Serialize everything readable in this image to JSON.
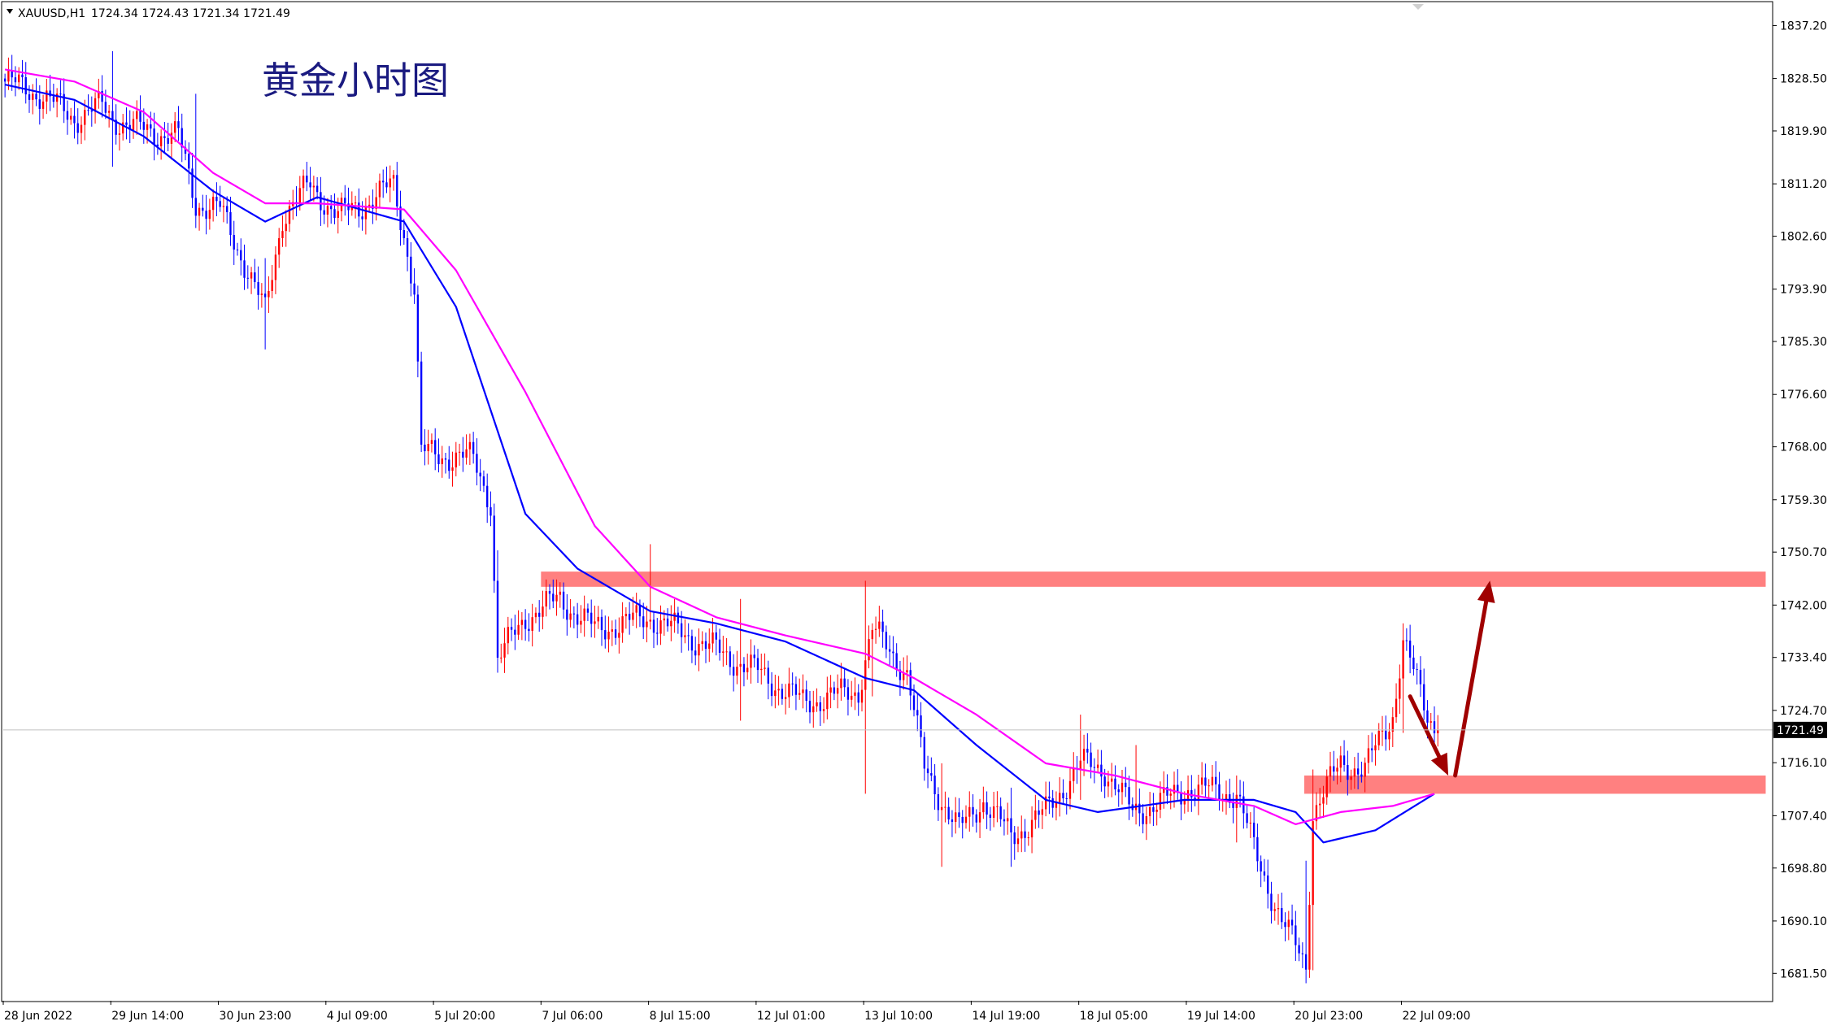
{
  "header": {
    "symbol": "XAUUSD,H1",
    "ohlc": "1724.34 1724.43 1721.34 1721.49"
  },
  "annotation_title": "黄金小时图",
  "current_price_label": "1721.49",
  "colors": {
    "background": "#ffffff",
    "axis": "#000000",
    "bull_candle": "#ff0000",
    "bear_candle": "#0000ff",
    "ma_fast": "#0000ff",
    "ma_slow": "#ff00ff",
    "zone": "#ff8080",
    "arrow": "#a00000",
    "price_label_bg": "#000000",
    "price_label_text": "#ffffff"
  },
  "chart_data": {
    "type": "candlestick",
    "symbol": "XAUUSD",
    "timeframe": "H1",
    "ylim": [
      1677.0,
      1841.0
    ],
    "y_ticks": [
      "1837.20",
      "1828.50",
      "1819.90",
      "1811.20",
      "1802.60",
      "1793.90",
      "1785.30",
      "1776.60",
      "1768.00",
      "1759.30",
      "1750.70",
      "1742.00",
      "1733.40",
      "1724.70",
      "1716.10",
      "1707.40",
      "1698.80",
      "1690.10",
      "1681.50"
    ],
    "x_ticks": [
      "28 Jun 2022",
      "29 Jun 14:00",
      "30 Jun 23:00",
      "4 Jul 09:00",
      "5 Jul 20:00",
      "7 Jul 06:00",
      "8 Jul 15:00",
      "12 Jul 01:00",
      "13 Jul 10:00",
      "14 Jul 19:00",
      "18 Jul 05:00",
      "19 Jul 14:00",
      "20 Jul 23:00",
      "22 Jul 09:00"
    ],
    "x_tick_bar_index": [
      0,
      31,
      62,
      93,
      124,
      155,
      186,
      217,
      248,
      279,
      310,
      341,
      372,
      403
    ],
    "total_bars": 510,
    "close_path_anchors": [
      [
        0,
        1828
      ],
      [
        10,
        1826
      ],
      [
        20,
        1822
      ],
      [
        28,
        1824
      ],
      [
        31,
        1822
      ],
      [
        40,
        1820
      ],
      [
        50,
        1819
      ],
      [
        55,
        1808
      ],
      [
        62,
        1807
      ],
      [
        70,
        1797
      ],
      [
        75,
        1790
      ],
      [
        80,
        1806
      ],
      [
        88,
        1811
      ],
      [
        96,
        1806
      ],
      [
        104,
        1808
      ],
      [
        112,
        1811
      ],
      [
        115,
        1803
      ],
      [
        118,
        1794
      ],
      [
        120,
        1767
      ],
      [
        135,
        1766
      ],
      [
        140,
        1759
      ],
      [
        142,
        1733
      ],
      [
        150,
        1740
      ],
      [
        160,
        1743
      ],
      [
        170,
        1738
      ],
      [
        186,
        1740
      ],
      [
        200,
        1736
      ],
      [
        217,
        1731
      ],
      [
        230,
        1726
      ],
      [
        246,
        1728
      ],
      [
        250,
        1738
      ],
      [
        260,
        1731
      ],
      [
        265,
        1715
      ],
      [
        275,
        1705
      ],
      [
        282,
        1710
      ],
      [
        290,
        1704
      ],
      [
        300,
        1708
      ],
      [
        310,
        1716
      ],
      [
        317,
        1715
      ],
      [
        325,
        1708
      ],
      [
        335,
        1710
      ],
      [
        341,
        1712
      ],
      [
        355,
        1711
      ],
      [
        360,
        1702
      ],
      [
        368,
        1690
      ],
      [
        375,
        1683
      ],
      [
        377,
        1708
      ],
      [
        385,
        1716
      ],
      [
        392,
        1715
      ],
      [
        400,
        1724
      ],
      [
        403,
        1736
      ],
      [
        410,
        1724
      ],
      [
        413,
        1721.49
      ]
    ],
    "wicks": [
      [
        31,
        1833,
        1814
      ],
      [
        55,
        1826,
        1805
      ],
      [
        75,
        1799,
        1784
      ],
      [
        142,
        1751,
        1733
      ],
      [
        186,
        1752,
        1738
      ],
      [
        212,
        1743,
        1723
      ],
      [
        248,
        1746,
        1711
      ],
      [
        250,
        1739,
        1727
      ],
      [
        270,
        1716,
        1699
      ],
      [
        290,
        1712,
        1699
      ],
      [
        310,
        1724,
        1710
      ],
      [
        326,
        1719,
        1706
      ],
      [
        355,
        1714,
        1703
      ],
      [
        375,
        1700,
        1681
      ],
      [
        377,
        1715,
        1682
      ],
      [
        403,
        1739,
        1721
      ]
    ],
    "series": [
      {
        "name": "",
        "kind": "moving_average",
        "color": "#0000ff",
        "points": [
          [
            0,
            1827.5
          ],
          [
            20,
            1825
          ],
          [
            40,
            1819
          ],
          [
            60,
            1810
          ],
          [
            75,
            1805
          ],
          [
            90,
            1809
          ],
          [
            115,
            1805
          ],
          [
            130,
            1791
          ],
          [
            150,
            1757
          ],
          [
            165,
            1748
          ],
          [
            186,
            1741
          ],
          [
            205,
            1739
          ],
          [
            225,
            1736
          ],
          [
            248,
            1730
          ],
          [
            262,
            1728
          ],
          [
            280,
            1719
          ],
          [
            300,
            1710
          ],
          [
            315,
            1708
          ],
          [
            340,
            1710
          ],
          [
            360,
            1710
          ],
          [
            372,
            1708
          ],
          [
            380,
            1703
          ],
          [
            395,
            1705
          ],
          [
            412,
            1711
          ]
        ]
      },
      {
        "name": "",
        "kind": "moving_average",
        "color": "#ff00ff",
        "points": [
          [
            0,
            1830
          ],
          [
            20,
            1828
          ],
          [
            40,
            1823
          ],
          [
            60,
            1813
          ],
          [
            75,
            1808
          ],
          [
            90,
            1808
          ],
          [
            115,
            1807
          ],
          [
            130,
            1797
          ],
          [
            150,
            1777
          ],
          [
            170,
            1755
          ],
          [
            186,
            1745
          ],
          [
            205,
            1740
          ],
          [
            225,
            1737
          ],
          [
            248,
            1734
          ],
          [
            262,
            1730
          ],
          [
            280,
            1724
          ],
          [
            300,
            1716
          ],
          [
            320,
            1714
          ],
          [
            340,
            1711
          ],
          [
            360,
            1709
          ],
          [
            372,
            1706
          ],
          [
            385,
            1708
          ],
          [
            400,
            1709
          ],
          [
            412,
            1711
          ]
        ]
      }
    ],
    "zones": [
      {
        "from_bar": 155,
        "to_bar": 508,
        "low": 1745,
        "high": 1747.5
      },
      {
        "from_bar": 375,
        "to_bar": 508,
        "low": 1711,
        "high": 1714
      }
    ],
    "arrows": [
      {
        "from_bar": 405,
        "from_price": 1727,
        "to_bar": 416,
        "to_price": 1714
      },
      {
        "from_bar": 418,
        "from_price": 1714,
        "to_bar": 428,
        "to_price": 1746
      }
    ],
    "current_price": 1721.49
  }
}
